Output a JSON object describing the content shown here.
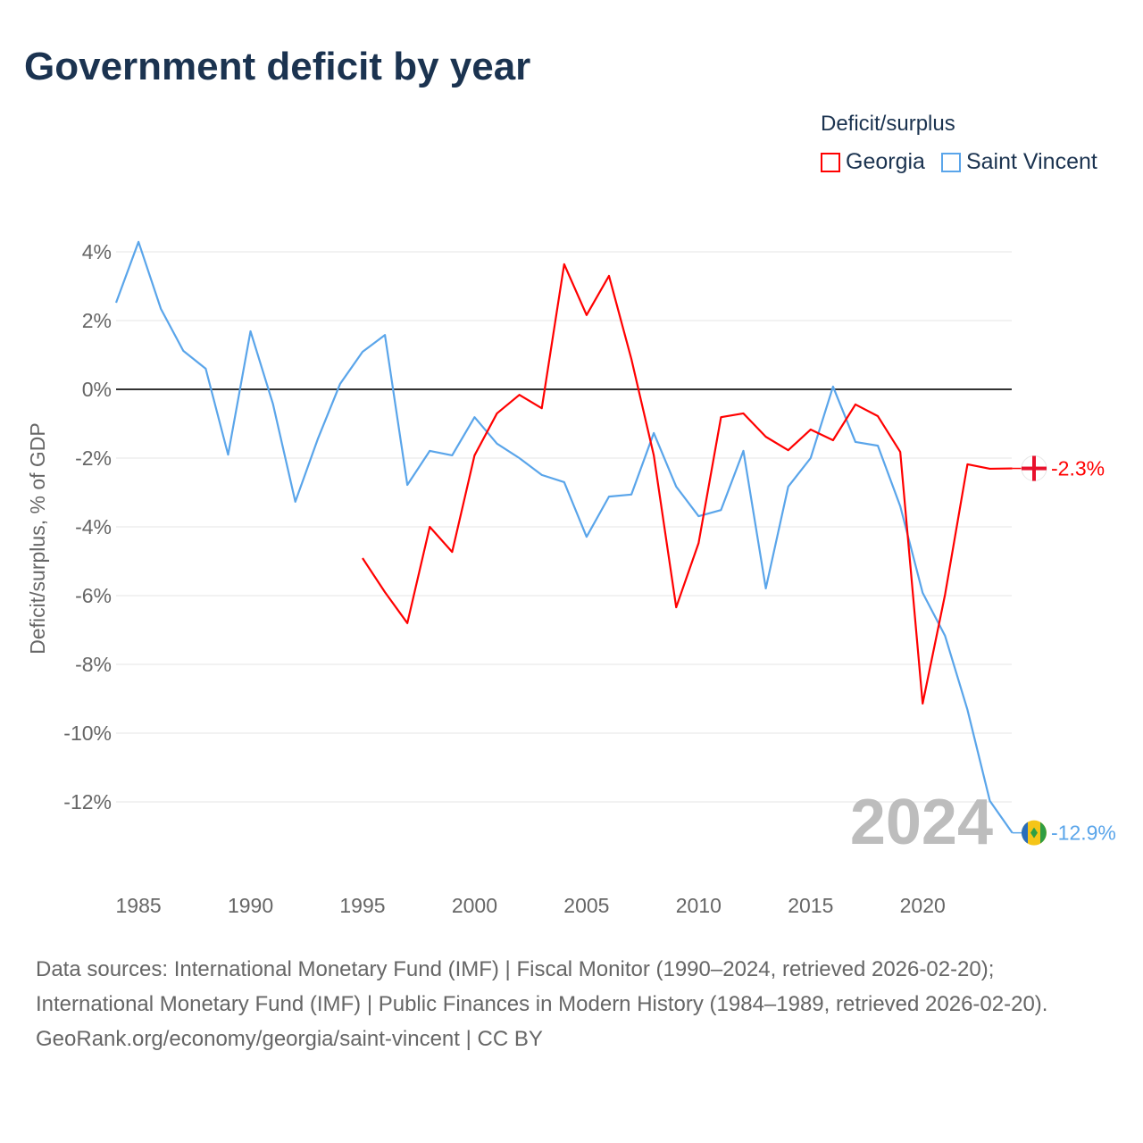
{
  "chart_data": {
    "type": "line",
    "title": "Government deficit by year",
    "ylabel": "Deficit/surplus, % of GDP",
    "xlabel": "",
    "xlim": [
      1984,
      2024
    ],
    "ylim": [
      -14,
      4.6
    ],
    "yticks": [
      4,
      2,
      0,
      -2,
      -4,
      -6,
      -8,
      -10,
      -12
    ],
    "ytick_labels": [
      "4%",
      "2%",
      "0%",
      "-2%",
      "-4%",
      "-6%",
      "-8%",
      "-10%",
      "-12%"
    ],
    "xticks": [
      1985,
      1990,
      1995,
      2000,
      2005,
      2010,
      2015,
      2020
    ],
    "xtick_labels": [
      "1985",
      "1990",
      "1995",
      "2000",
      "2005",
      "2010",
      "2015",
      "2020"
    ],
    "legend_title": "Deficit/surplus",
    "legend_position": "top-right",
    "year_label": "2024",
    "series": [
      {
        "name": "Georgia",
        "color": "#ff0000",
        "end_label": "-2.3%",
        "x": [
          1995,
          1996,
          1997,
          1998,
          1999,
          2000,
          2001,
          2002,
          2003,
          2004,
          2005,
          2006,
          2007,
          2008,
          2009,
          2010,
          2011,
          2012,
          2013,
          2014,
          2015,
          2016,
          2017,
          2018,
          2019,
          2020,
          2021,
          2022,
          2023,
          2024
        ],
        "values": [
          -4.91,
          -5.9,
          -6.8,
          -4.0,
          -4.73,
          -1.92,
          -0.7,
          -0.16,
          -0.55,
          3.64,
          2.16,
          3.3,
          0.88,
          -1.92,
          -6.34,
          -4.47,
          -0.81,
          -0.7,
          -1.38,
          -1.77,
          -1.17,
          -1.48,
          -0.44,
          -0.78,
          -1.82,
          -9.14,
          -5.97,
          -2.18,
          -2.31,
          -2.3
        ]
      },
      {
        "name": "Saint Vincent",
        "color": "#5aa5ea",
        "end_label": "-12.9%",
        "x": [
          1984,
          1985,
          1986,
          1987,
          1988,
          1989,
          1990,
          1991,
          1992,
          1993,
          1994,
          1995,
          1996,
          1997,
          1998,
          1999,
          2000,
          2001,
          2002,
          2003,
          2004,
          2005,
          2006,
          2007,
          2008,
          2009,
          2010,
          2011,
          2012,
          2013,
          2014,
          2015,
          2016,
          2017,
          2018,
          2019,
          2020,
          2021,
          2022,
          2023,
          2024
        ],
        "values": [
          2.52,
          4.29,
          2.34,
          1.12,
          0.6,
          -1.9,
          1.69,
          -0.42,
          -3.27,
          -1.45,
          0.16,
          1.09,
          1.58,
          -2.78,
          -1.79,
          -1.92,
          -0.81,
          -1.58,
          -2.0,
          -2.49,
          -2.7,
          -4.29,
          -3.12,
          -3.06,
          -1.27,
          -2.83,
          -3.69,
          -3.51,
          -1.79,
          -5.79,
          -2.83,
          -2.0,
          0.08,
          -1.53,
          -1.64,
          -3.4,
          -5.92,
          -7.17,
          -9.32,
          -11.97,
          -12.9
        ]
      }
    ]
  },
  "footer": {
    "sources": "Data sources: International Monetary Fund (IMF) | Fiscal Monitor (1990–2024, retrieved 2026-02-20); International Monetary Fund (IMF) | Public Finances in Modern History (1984–1989, retrieved 2026-02-20).",
    "credit": "GeoRank.org/economy/georgia/saint-vincent | CC BY"
  }
}
